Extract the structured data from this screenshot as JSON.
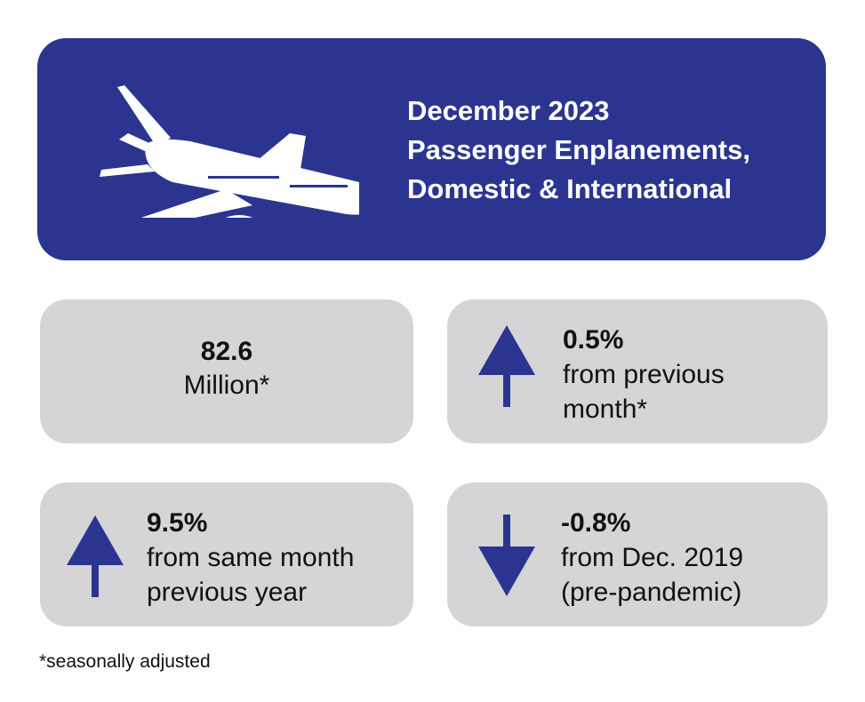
{
  "header": {
    "title_line1": "December 2023",
    "title_line2": "Passenger Enplanements,",
    "title_line3": "Domestic & International",
    "icon": "airplane-icon",
    "background_color": "#2b3590"
  },
  "stats": [
    {
      "value": "82.6",
      "label": "Million*"
    },
    {
      "direction": "up",
      "value": "0.5%",
      "label_line1": "from previous",
      "label_line2": "month*"
    },
    {
      "direction": "up",
      "value": "9.5%",
      "label_line1": "from same month",
      "label_line2": "previous year"
    },
    {
      "direction": "down",
      "value": "-0.8%",
      "label_line1": "from Dec. 2019",
      "label_line2": "(pre-pandemic)"
    }
  ],
  "footnote": "*seasonally adjusted",
  "colors": {
    "accent": "#2b3590",
    "card_background": "#d5d5d7",
    "text": "#111111"
  }
}
